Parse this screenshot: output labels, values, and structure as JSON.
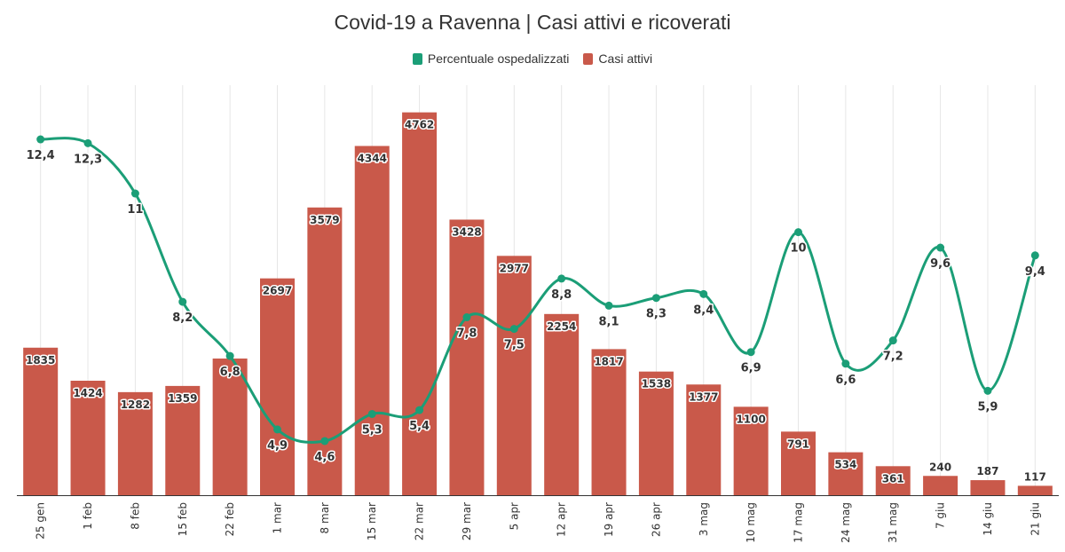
{
  "chart_data": {
    "type": "bar",
    "title": "Covid-19 a Ravenna | Casi attivi e ricoverati",
    "categories": [
      "25 gen",
      "1 feb",
      "8 feb",
      "15 feb",
      "22 feb",
      "1 mar",
      "8 mar",
      "15 mar",
      "22 mar",
      "29 mar",
      "5 apr",
      "12 apr",
      "19 apr",
      "26 apr",
      "3 mag",
      "10 mag",
      "17 mag",
      "24 mag",
      "31 mag",
      "7 giu",
      "14 giu",
      "21 giu"
    ],
    "series": [
      {
        "name": "Casi attivi",
        "type": "bar",
        "color": "#c9594a",
        "values": [
          1835,
          1424,
          1282,
          1359,
          1700,
          2697,
          3579,
          4344,
          4762,
          3428,
          2977,
          2254,
          1817,
          1538,
          1377,
          1100,
          791,
          534,
          361,
          240,
          187,
          117
        ],
        "labels": [
          "1835",
          "1424",
          "1282",
          "1359",
          "",
          "2697",
          "3579",
          "4344",
          "4762",
          "3428",
          "2977",
          "2254",
          "1817",
          "1538",
          "1377",
          "1100",
          "791",
          "534",
          "361",
          "240",
          "187",
          "117"
        ]
      },
      {
        "name": "Percentuale ospedalizzati",
        "type": "line",
        "color": "#1b9e77",
        "values": [
          12.4,
          12.3,
          11,
          8.2,
          6.8,
          4.9,
          4.6,
          5.3,
          5.4,
          7.8,
          7.5,
          8.8,
          8.1,
          8.3,
          8.4,
          6.9,
          10,
          6.6,
          7.2,
          9.6,
          5.9,
          9.4
        ],
        "labels": [
          "12,4",
          "12,3",
          "11",
          "8,2",
          "6,8",
          "4,9",
          "4,6",
          "5,3",
          "5,4",
          "7,8",
          "7,5",
          "8,8",
          "8,1",
          "8,3",
          "8,4",
          "6,9",
          "10",
          "6,6",
          "7,2",
          "9,6",
          "5,9",
          "9,4"
        ]
      }
    ],
    "bar_axis_max": 5100,
    "line_axis_range": [
      3.2,
      13.8
    ],
    "grid": "vertical",
    "legend_position": "top-center"
  }
}
